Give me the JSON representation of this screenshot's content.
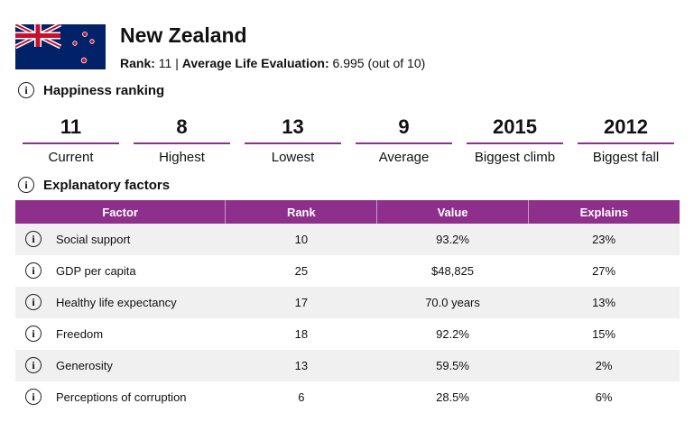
{
  "header": {
    "title": "New Zealand",
    "rank_label": "Rank:",
    "rank": 11,
    "separator": "|",
    "evaluation_label": "Average Life Evaluation:",
    "evaluation": 6.995,
    "evaluation_note": "(out of 10)"
  },
  "ranking": {
    "title": "Happiness ranking",
    "stats": [
      {
        "value": 11,
        "label": "Current"
      },
      {
        "value": 8,
        "label": "Highest"
      },
      {
        "value": 13,
        "label": "Lowest"
      },
      {
        "value": 9,
        "label": "Average"
      },
      {
        "value": 2015,
        "label": "Biggest climb"
      },
      {
        "value": 2012,
        "label": "Biggest fall"
      }
    ]
  },
  "factors": {
    "title": "Explanatory factors",
    "columns": [
      "Factor",
      "Rank",
      "Value",
      "Explains"
    ],
    "rows": [
      [
        "Social support",
        10,
        "93.2%",
        "23%"
      ],
      [
        "GDP per capita",
        25,
        "$48,825",
        "27%"
      ],
      [
        "Healthy life expectancy",
        17,
        "70.0 years",
        "13%"
      ],
      [
        "Freedom",
        18,
        "92.2%",
        "15%"
      ],
      [
        "Generosity",
        13,
        "59.5%",
        "2%"
      ],
      [
        "Perceptions of corruption",
        6,
        "28.5%",
        "6%"
      ]
    ]
  }
}
